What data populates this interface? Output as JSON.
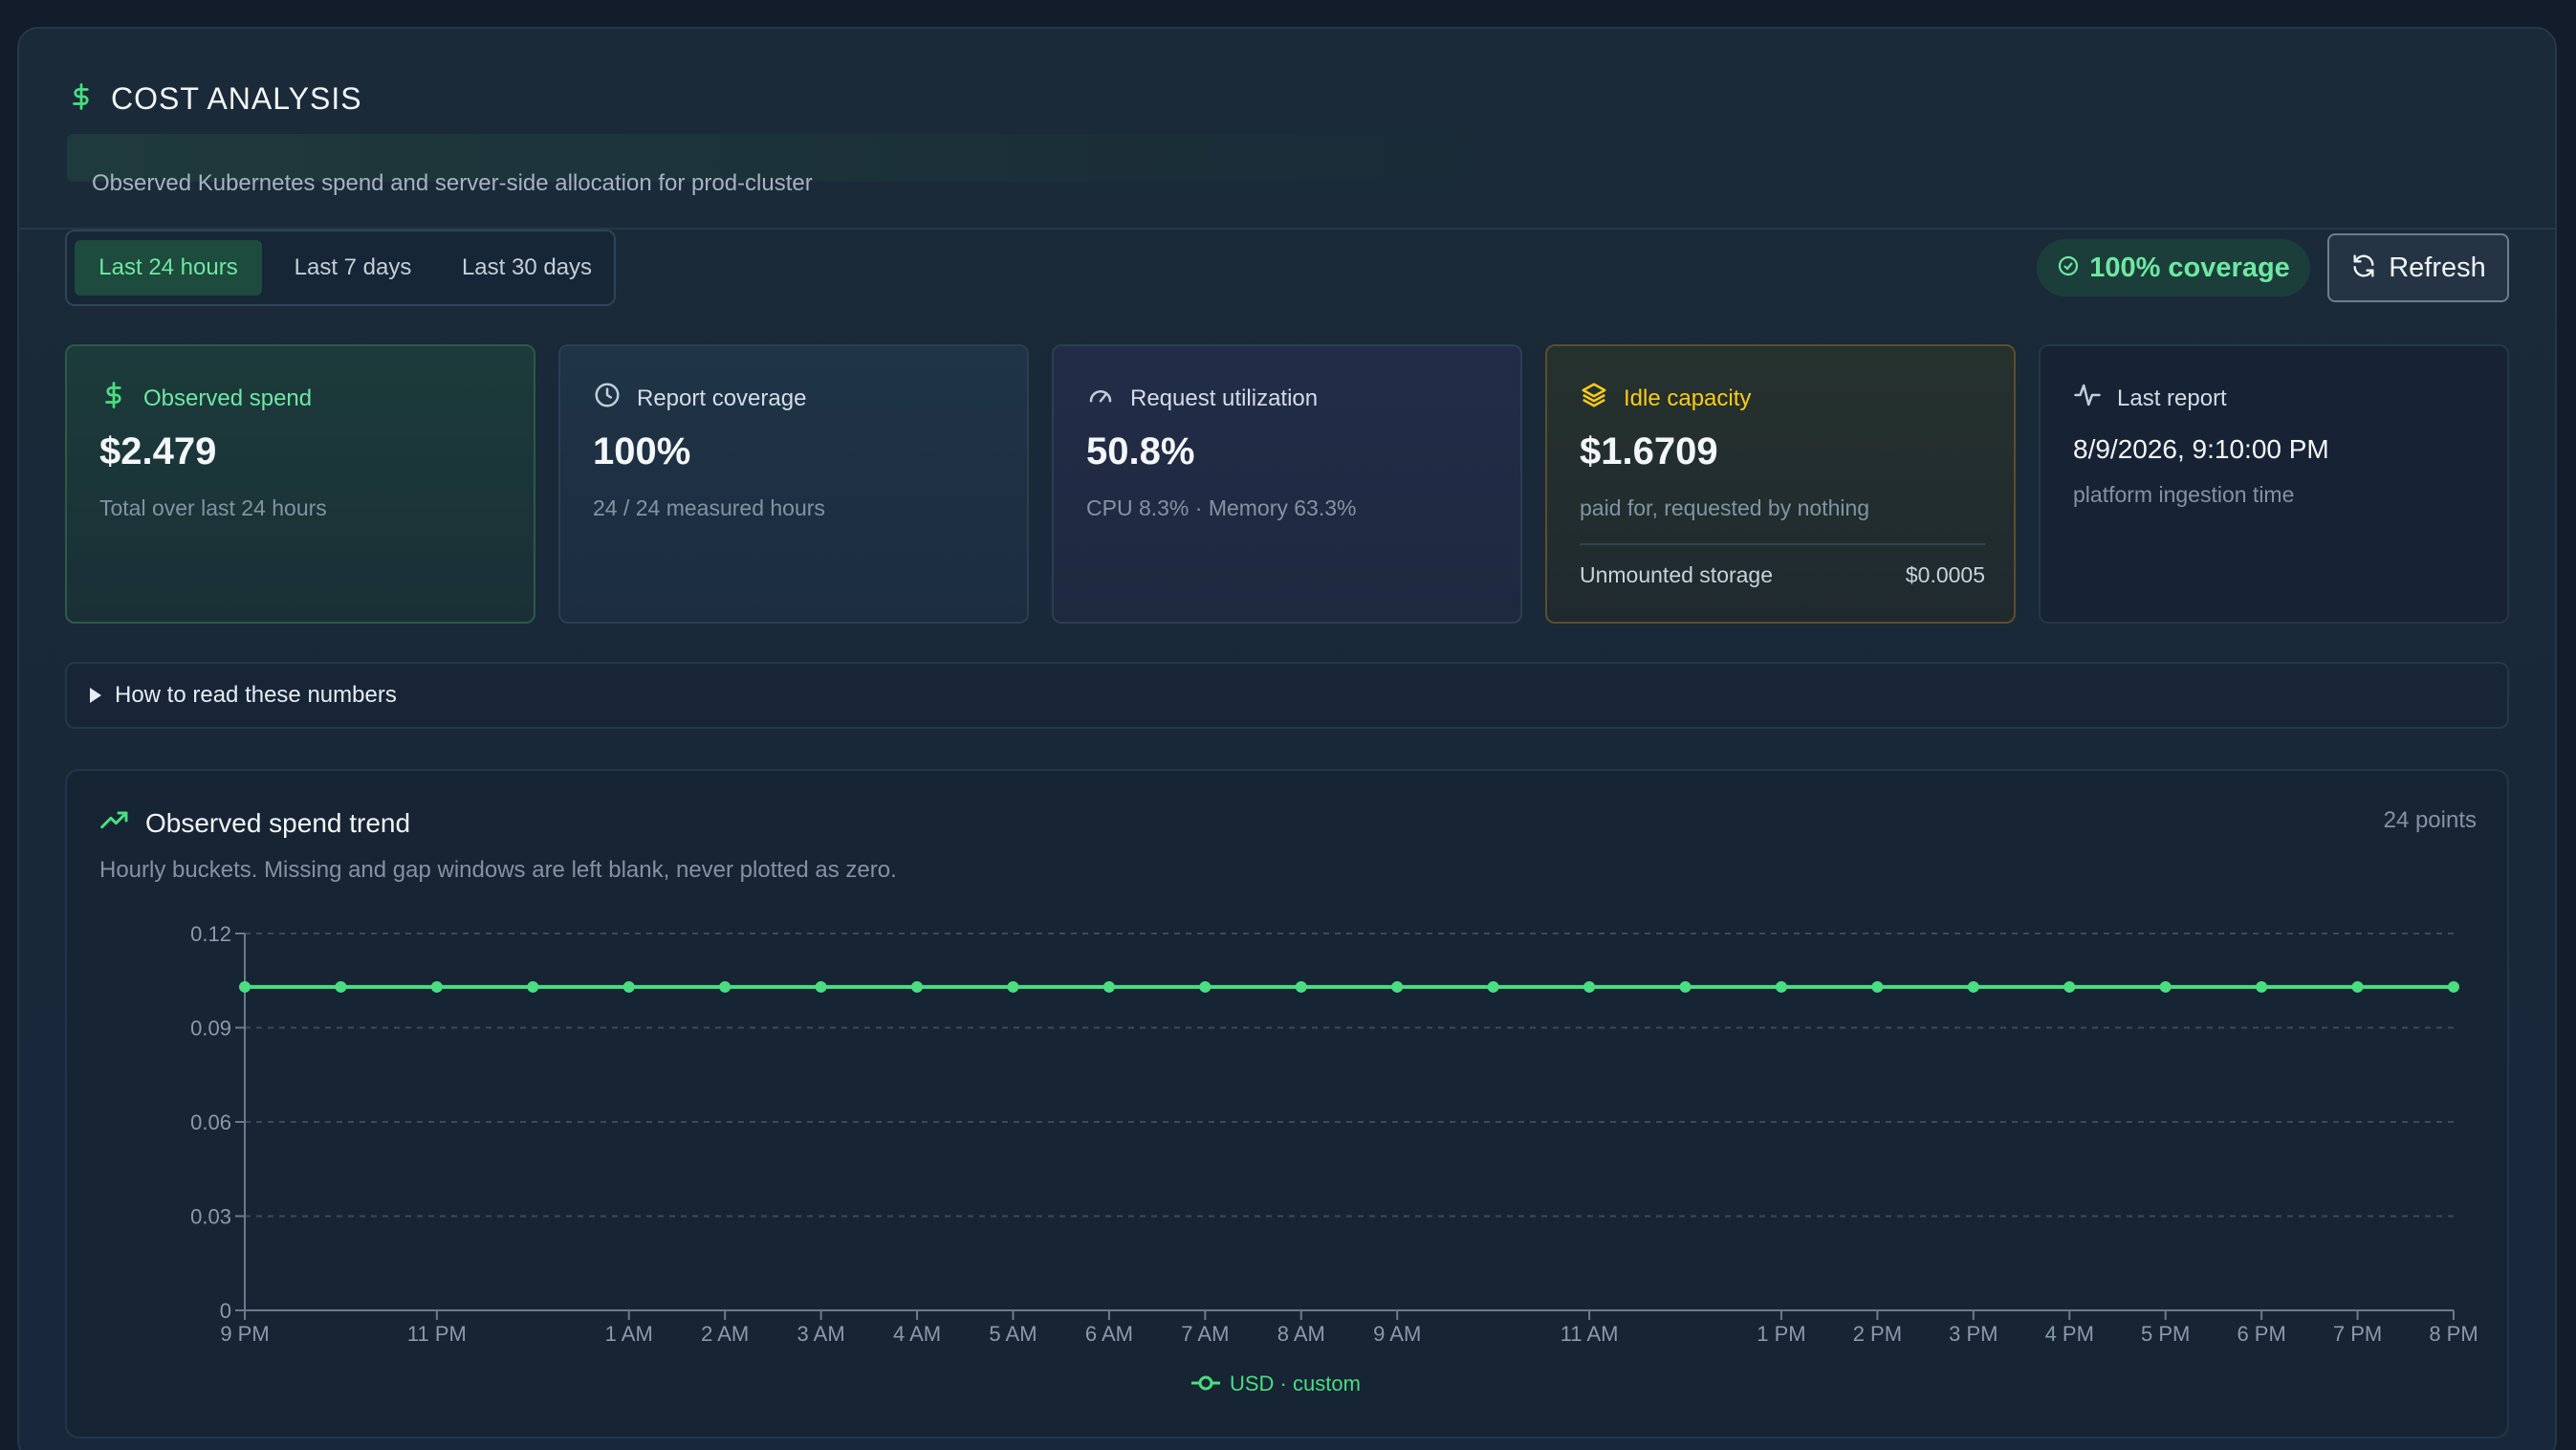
{
  "header": {
    "title": "COST ANALYSIS",
    "subtitle": "Observed Kubernetes spend and server-side allocation for prod-cluster"
  },
  "range_tabs": [
    {
      "label": "Last 24 hours",
      "active": true
    },
    {
      "label": "Last 7 days",
      "active": false
    },
    {
      "label": "Last 30 days",
      "active": false
    }
  ],
  "coverage_badge": "100% coverage",
  "refresh_label": "Refresh",
  "cards": {
    "observed_spend": {
      "label": "Observed spend",
      "value": "$2.479",
      "sub": "Total over last 24 hours"
    },
    "report_coverage": {
      "label": "Report coverage",
      "value": "100%",
      "sub": "24 / 24 measured hours"
    },
    "request_utilization": {
      "label": "Request utilization",
      "value": "50.8%",
      "sub": "CPU 8.3% · Memory 63.3%"
    },
    "idle_capacity": {
      "label": "Idle capacity",
      "value": "$1.6709",
      "sub": "paid for, requested by nothing",
      "storage_label": "Unmounted storage",
      "storage_value": "$0.0005"
    },
    "last_report": {
      "label": "Last report",
      "value": "8/9/2026, 9:10:00 PM",
      "sub": "platform ingestion time"
    }
  },
  "howto_label": "How to read these numbers",
  "trend": {
    "title": "Observed spend trend",
    "note": "Hourly buckets. Missing and gap windows are left blank, never plotted as zero.",
    "points_label": "24 points"
  },
  "colors": {
    "accent": "#4ade80",
    "idle": "#facc15",
    "bg": "#121c2b"
  },
  "chart_data": {
    "type": "line",
    "x": [
      "9 PM",
      "10 PM",
      "11 PM",
      "12 AM",
      "1 AM",
      "2 AM",
      "3 AM",
      "4 AM",
      "5 AM",
      "6 AM",
      "7 AM",
      "8 AM",
      "9 AM",
      "10 AM",
      "11 AM",
      "12 PM",
      "1 PM",
      "2 PM",
      "3 PM",
      "4 PM",
      "5 PM",
      "6 PM",
      "7 PM",
      "8 PM"
    ],
    "x_tick_labels": [
      "9 PM",
      "11 PM",
      "1 AM",
      "2 AM",
      "3 AM",
      "4 AM",
      "5 AM",
      "6 AM",
      "7 AM",
      "8 AM",
      "9 AM",
      "11 AM",
      "1 PM",
      "2 PM",
      "3 PM",
      "4 PM",
      "5 PM",
      "6 PM",
      "7 PM",
      "8 PM"
    ],
    "series": [
      {
        "name": "USD · custom",
        "values": [
          0.103,
          0.103,
          0.103,
          0.103,
          0.103,
          0.103,
          0.103,
          0.103,
          0.103,
          0.103,
          0.103,
          0.103,
          0.103,
          0.103,
          0.103,
          0.103,
          0.103,
          0.103,
          0.103,
          0.103,
          0.103,
          0.103,
          0.103,
          0.103
        ]
      }
    ],
    "ylim": [
      0,
      0.12
    ],
    "yticks": [
      "0",
      "0.03",
      "0.06",
      "0.09",
      "0.12"
    ],
    "grid": true,
    "legend": "bottom-center"
  }
}
